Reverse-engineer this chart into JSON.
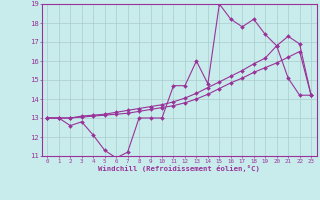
{
  "title": "",
  "xlabel": "Windchill (Refroidissement éolien,°C)",
  "bg_color": "#c8ecec",
  "line_color": "#993399",
  "grid_color": "#aacccc",
  "xlim": [
    -0.5,
    23.5
  ],
  "ylim": [
    11,
    19
  ],
  "yticks": [
    11,
    12,
    13,
    14,
    15,
    16,
    17,
    18,
    19
  ],
  "xticks": [
    0,
    1,
    2,
    3,
    4,
    5,
    6,
    7,
    8,
    9,
    10,
    11,
    12,
    13,
    14,
    15,
    16,
    17,
    18,
    19,
    20,
    21,
    22,
    23
  ],
  "line1_x": [
    0,
    1,
    2,
    3,
    4,
    5,
    6,
    7,
    8,
    9,
    10,
    11,
    12,
    13,
    14,
    15,
    16,
    17,
    18,
    19,
    20,
    21,
    22,
    23
  ],
  "line1_y": [
    13,
    13,
    12.6,
    12.8,
    12.1,
    11.3,
    10.9,
    11.2,
    13.0,
    13.0,
    13.0,
    14.7,
    14.7,
    16.0,
    14.8,
    19.0,
    18.2,
    17.8,
    18.2,
    17.4,
    16.8,
    15.1,
    14.2,
    14.2
  ],
  "line2_x": [
    0,
    1,
    2,
    3,
    4,
    5,
    6,
    7,
    8,
    9,
    10,
    11,
    12,
    13,
    14,
    15,
    16,
    17,
    18,
    19,
    20,
    21,
    22,
    23
  ],
  "line2_y": [
    13.0,
    13.0,
    13.0,
    13.05,
    13.1,
    13.15,
    13.2,
    13.25,
    13.35,
    13.45,
    13.55,
    13.65,
    13.8,
    14.0,
    14.25,
    14.55,
    14.85,
    15.1,
    15.4,
    15.65,
    15.9,
    16.2,
    16.5,
    14.2
  ],
  "line3_x": [
    0,
    1,
    2,
    3,
    4,
    5,
    6,
    7,
    8,
    9,
    10,
    11,
    12,
    13,
    14,
    15,
    16,
    17,
    18,
    19,
    20,
    21,
    22,
    23
  ],
  "line3_y": [
    13.0,
    13.0,
    13.0,
    13.1,
    13.15,
    13.2,
    13.3,
    13.4,
    13.5,
    13.6,
    13.7,
    13.85,
    14.05,
    14.3,
    14.6,
    14.9,
    15.2,
    15.5,
    15.85,
    16.15,
    16.8,
    17.3,
    16.9,
    14.2
  ]
}
